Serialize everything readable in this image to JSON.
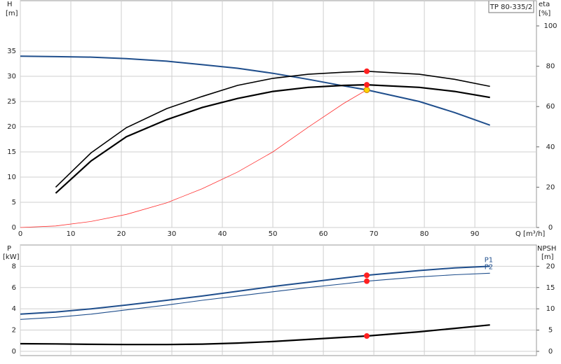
{
  "chart_data": [
    {
      "type": "line",
      "title": "TP 80-335/2",
      "x_label": "Q [m³/h]",
      "y_label": "H",
      "y_unit": "[m]",
      "y2_label": "eta",
      "y2_unit": "[%]",
      "x": [
        0,
        7,
        14,
        21,
        29,
        36,
        43,
        50,
        57,
        64,
        68.6,
        79,
        86,
        93
      ],
      "xlim": [
        0,
        102.2
      ],
      "xticks": [
        0,
        10,
        20,
        30,
        40,
        50,
        60,
        70,
        80,
        90
      ],
      "ylim": [
        0,
        45
      ],
      "yticks": [
        0,
        5,
        10,
        15,
        20,
        25,
        30,
        35
      ],
      "y2lim": [
        0,
        112.5
      ],
      "y2ticks": [
        0,
        20,
        40,
        60,
        80,
        100
      ],
      "grid": true,
      "series": [
        {
          "color": "#1f4e8c",
          "axis": "y",
          "values": [
            34,
            33.9,
            33.8,
            33.5,
            33,
            32.3,
            31.6,
            30.6,
            29.4,
            28.1,
            27.3,
            25,
            22.8,
            20.3
          ]
        },
        {
          "color": "#000000",
          "axis": "y2",
          "values": [
            null,
            20,
            37,
            49.5,
            59,
            65,
            70.5,
            74,
            76,
            77,
            77.5,
            76,
            73.5,
            70
          ]
        },
        {
          "color": "#000000",
          "axis": "y2",
          "values": [
            null,
            17,
            33,
            45,
            53.5,
            59.5,
            64,
            67.5,
            69.5,
            70.5,
            70.8,
            69.5,
            67.5,
            64.5
          ]
        },
        {
          "color": "#ff3030",
          "axis": "y",
          "values": [
            0,
            0.3,
            1.2,
            2.6,
            4.9,
            7.7,
            11,
            15,
            19.9,
            24.6,
            27.3,
            null,
            null,
            null
          ]
        }
      ],
      "points": [
        {
          "x": 68.6,
          "y": 27.3,
          "color": "#ffd400",
          "axis": "y"
        },
        {
          "x": 68.6,
          "y": 77.5,
          "color": "#ff2020",
          "axis": "y2"
        },
        {
          "x": 68.6,
          "y": 70.8,
          "color": "#ff2020",
          "axis": "y2"
        }
      ]
    },
    {
      "type": "line",
      "y_label": "P",
      "y_unit": "[kW]",
      "y2_label": "NPSH",
      "y2_unit": "[m]",
      "x": [
        0,
        7,
        14,
        21,
        29,
        36,
        43,
        50,
        57,
        64,
        68.6,
        79,
        86,
        93
      ],
      "xlim": [
        0,
        102.2
      ],
      "ylim": [
        -0.4,
        10
      ],
      "yticks": [
        0,
        2,
        4,
        6,
        8
      ],
      "y2lim": [
        -1,
        25
      ],
      "y2ticks": [
        0,
        5,
        10,
        15,
        20
      ],
      "grid": true,
      "series": [
        {
          "name": "P1",
          "color": "#1f4e8c",
          "axis": "y",
          "values": [
            3.5,
            3.7,
            4.0,
            4.35,
            4.8,
            5.2,
            5.65,
            6.1,
            6.5,
            6.9,
            7.15,
            7.6,
            7.85,
            8.0
          ]
        },
        {
          "name": "P2",
          "color": "#1f4e8c",
          "axis": "y",
          "values": [
            3.0,
            3.2,
            3.5,
            3.9,
            4.35,
            4.8,
            5.2,
            5.6,
            6.0,
            6.35,
            6.6,
            7.0,
            7.2,
            7.35
          ]
        },
        {
          "color": "#000000",
          "axis": "y2",
          "values": [
            1.8,
            1.75,
            1.65,
            1.6,
            1.6,
            1.7,
            1.95,
            2.3,
            2.8,
            3.3,
            3.6,
            4.6,
            5.4,
            6.2
          ]
        }
      ],
      "points": [
        {
          "x": 68.6,
          "y": 7.15,
          "color": "#ff2020",
          "axis": "y"
        },
        {
          "x": 68.6,
          "y": 6.6,
          "color": "#ff2020",
          "axis": "y"
        },
        {
          "x": 68.6,
          "y": 3.6,
          "color": "#ff2020",
          "axis": "y2"
        }
      ]
    }
  ]
}
